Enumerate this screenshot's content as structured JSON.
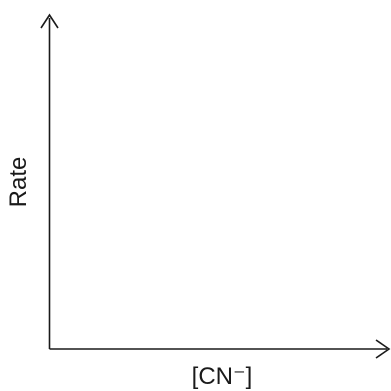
{
  "chart_data": {
    "type": "line",
    "title": "",
    "xlabel": "[CN⁻]",
    "ylabel": "Rate",
    "series": [],
    "grid": false,
    "legend": "none"
  },
  "colors": {
    "axis": "#1a1a1a",
    "background": "#ffffff"
  }
}
